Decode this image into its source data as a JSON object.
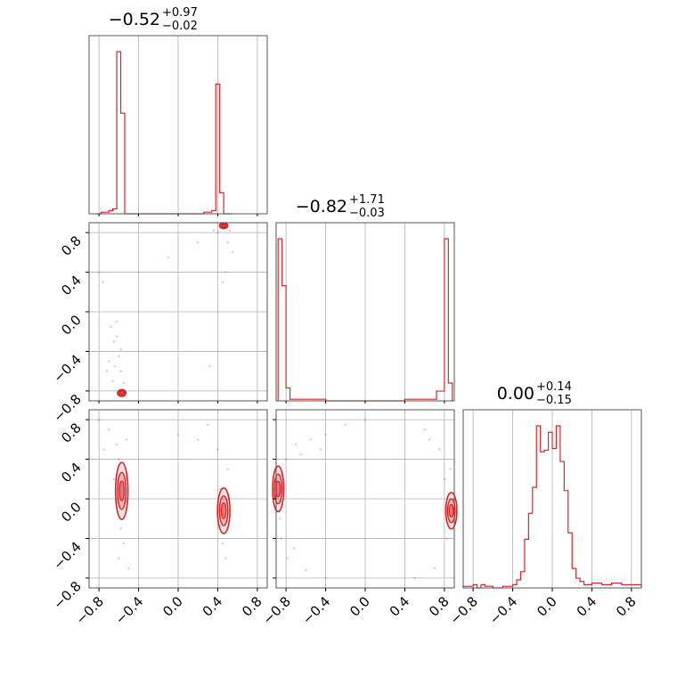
{
  "chart_data": {
    "type": "corner",
    "color": "#d62728",
    "grid": true,
    "ticks": [
      "−0.8",
      "−0.4",
      "0.0",
      "0.4",
      "0.8"
    ],
    "tick_values": [
      -0.8,
      -0.4,
      0.0,
      0.4,
      0.8
    ],
    "range": [
      -0.9,
      0.9
    ],
    "parameters": [
      {
        "title_median": "−0.52",
        "title_plus": "+0.97",
        "title_minus": "−0.02",
        "histogram": {
          "bin_edges": [
            -0.82,
            -0.78,
            -0.74,
            -0.7,
            -0.66,
            -0.62,
            -0.58,
            -0.54,
            -0.5,
            -0.46,
            0.26,
            0.3,
            0.34,
            0.38,
            0.42,
            0.46,
            0.5,
            0.54
          ],
          "counts": [
            0,
            1,
            1,
            2,
            3,
            100,
            62,
            0,
            0,
            0,
            1,
            1,
            2,
            80,
            13,
            0,
            0
          ]
        }
      },
      {
        "title_median": "−0.82",
        "title_plus": "+1.71",
        "title_minus": "−0.03",
        "histogram": {
          "bin_edges": [
            -0.88,
            -0.84,
            -0.8,
            -0.76,
            -0.6,
            -0.4,
            0.0,
            0.4,
            0.72,
            0.8,
            0.84,
            0.88
          ],
          "counts": [
            100,
            71,
            8,
            1,
            1,
            0,
            0,
            1,
            6,
            100,
            11
          ]
        }
      },
      {
        "title_median": "0.00",
        "title_plus": "+0.14",
        "title_minus": "−0.15",
        "histogram": {
          "bin_edges": [
            -0.9,
            -0.8,
            -0.76,
            -0.72,
            -0.68,
            -0.6,
            -0.5,
            -0.4,
            -0.36,
            -0.32,
            -0.28,
            -0.24,
            -0.2,
            -0.16,
            -0.12,
            -0.08,
            -0.04,
            0.0,
            0.04,
            0.08,
            0.12,
            0.16,
            0.2,
            0.24,
            0.28,
            0.32,
            0.4,
            0.5,
            0.6,
            0.7,
            0.8,
            0.9
          ],
          "counts": [
            1,
            2,
            0,
            2,
            1,
            0,
            1,
            2,
            5,
            10,
            30,
            46,
            62,
            100,
            84,
            85,
            96,
            86,
            100,
            78,
            60,
            34,
            12,
            6,
            4,
            2,
            3,
            2,
            3,
            2,
            2
          ]
        }
      }
    ],
    "contours": [
      {
        "pair": [
          0,
          1
        ],
        "modes": [
          {
            "cx": 0.46,
            "cy": 0.87,
            "rx": 0.03,
            "ry": 0.025
          },
          {
            "cx": -0.57,
            "cy": -0.82,
            "rx": 0.03,
            "ry": 0.03
          }
        ],
        "scatter": [
          [
            -0.62,
            -0.1
          ],
          [
            -0.65,
            -0.3
          ],
          [
            -0.6,
            -0.45
          ],
          [
            -0.7,
            -0.5
          ],
          [
            -0.58,
            -0.6
          ],
          [
            -0.66,
            -0.7
          ],
          [
            -0.62,
            -0.25
          ],
          [
            -0.72,
            -0.6
          ],
          [
            0.4,
            0.8
          ],
          [
            0.5,
            0.7
          ],
          [
            0.55,
            0.6
          ],
          [
            0.45,
            0.3
          ],
          [
            -0.1,
            0.55
          ],
          [
            0.2,
            0.7
          ],
          [
            -0.8,
            0.4
          ],
          [
            -0.55,
            -0.72
          ],
          [
            -0.64,
            -0.55
          ],
          [
            0.36,
            0.82
          ],
          [
            0.52,
            0.82
          ],
          [
            -0.58,
            -0.38
          ],
          [
            -0.68,
            -0.15
          ],
          [
            0.48,
            0.4
          ],
          [
            0.32,
            -0.55
          ],
          [
            -0.76,
            0.3
          ]
        ]
      },
      {
        "pair": [
          0,
          2
        ],
        "modes": [
          {
            "cx": -0.57,
            "cy": 0.08,
            "rx": 0.045,
            "ry": 0.25
          },
          {
            "cx": 0.46,
            "cy": -0.12,
            "rx": 0.045,
            "ry": 0.2
          }
        ],
        "scatter": [
          [
            -0.6,
            0.4
          ],
          [
            -0.58,
            -0.3
          ],
          [
            -0.55,
            -0.45
          ],
          [
            -0.62,
            0.55
          ],
          [
            -0.7,
            0.7
          ],
          [
            0.5,
            0.3
          ],
          [
            0.45,
            -0.45
          ],
          [
            0.4,
            0.5
          ],
          [
            0.48,
            -0.6
          ],
          [
            -0.5,
            -0.7
          ],
          [
            -0.65,
            0.2
          ],
          [
            0.2,
            0.6
          ],
          [
            0.0,
            0.65
          ],
          [
            -0.8,
            0.8
          ],
          [
            0.42,
            0.1
          ],
          [
            -0.52,
            0.6
          ],
          [
            0.5,
            -0.3
          ],
          [
            -0.6,
            -0.6
          ],
          [
            -0.75,
            0.5
          ],
          [
            0.3,
            0.75
          ]
        ]
      },
      {
        "pair": [
          1,
          2
        ],
        "modes": [
          {
            "cx": -0.88,
            "cy": 0.1,
            "rx": 0.04,
            "ry": 0.2
          },
          {
            "cx": 0.87,
            "cy": -0.12,
            "rx": 0.04,
            "ry": 0.16
          }
        ],
        "scatter": [
          [
            -0.8,
            0.4
          ],
          [
            -0.7,
            0.55
          ],
          [
            -0.55,
            0.6
          ],
          [
            -0.4,
            0.65
          ],
          [
            -0.2,
            0.75
          ],
          [
            0.0,
            0.8
          ],
          [
            -0.85,
            -0.4
          ],
          [
            -0.78,
            -0.6
          ],
          [
            -0.6,
            -0.72
          ],
          [
            -0.4,
            -0.8
          ],
          [
            0.6,
            0.7
          ],
          [
            0.75,
            0.5
          ],
          [
            0.8,
            0.2
          ],
          [
            0.82,
            -0.4
          ],
          [
            0.7,
            -0.7
          ],
          [
            0.5,
            -0.8
          ],
          [
            -0.86,
            -0.2
          ],
          [
            0.86,
            0.3
          ],
          [
            -0.65,
            0.45
          ],
          [
            -0.45,
            0.5
          ],
          [
            0.65,
            0.6
          ],
          [
            -0.72,
            -0.5
          ]
        ]
      }
    ]
  }
}
